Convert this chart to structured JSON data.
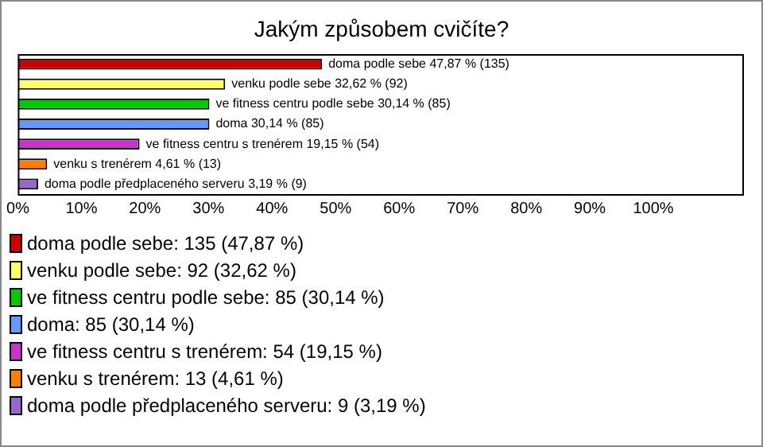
{
  "chart_data": {
    "type": "bar",
    "orientation": "horizontal",
    "title": "Jakým způsobem cvičíte?",
    "categories": [
      null,
      null,
      null,
      null,
      null,
      null,
      null
    ],
    "values": [
      47.87,
      32.62,
      30.14,
      30.14,
      19.15,
      4.61,
      3.19
    ],
    "colors": [
      "#cc0000",
      "#ffff66",
      "#00cc00",
      "#6699ff",
      "#cc33cc",
      "#ff8000",
      "#9966cc"
    ],
    "value_labels": [
      "doma podle sebe 47,87 % (135)",
      "venku podle sebe 32,62 % (92)",
      "ve fitness centru podle sebe 30,14 % (85)",
      "doma 30,14 % (85)",
      "ve fitness centru s trenérem 19,15 % (54)",
      "venku s trenérem 4,61 % (13)",
      "doma podle předplaceného serveru 3,19 % (9)"
    ],
    "xlim": [
      0,
      114
    ],
    "xticks": [
      {
        "value": 0,
        "label": "0%"
      },
      {
        "value": 10,
        "label": "10%"
      },
      {
        "value": 20,
        "label": "20%"
      },
      {
        "value": 30,
        "label": "30%"
      },
      {
        "value": 40,
        "label": "40%"
      },
      {
        "value": 50,
        "label": "50%"
      },
      {
        "value": 60,
        "label": "60%"
      },
      {
        "value": 70,
        "label": "70%"
      },
      {
        "value": 80,
        "label": "80%"
      },
      {
        "value": 90,
        "label": "90%"
      },
      {
        "value": 100,
        "label": "100%"
      }
    ],
    "annotations": [
      "doma podle sebe: 135 (47,87 %)",
      "venku podle sebe: 92 (32,62 %)",
      "ve fitness centru podle sebe: 85 (30,14 %)",
      "doma: 85 (30,14 %)",
      "ve fitness centru s trenérem: 54 (19,15 %)",
      "venku s trenérem: 13 (4,61 %)",
      "doma podle předplaceného serveru: 9 (3,19 %)"
    ],
    "grid": false,
    "legend": false
  }
}
